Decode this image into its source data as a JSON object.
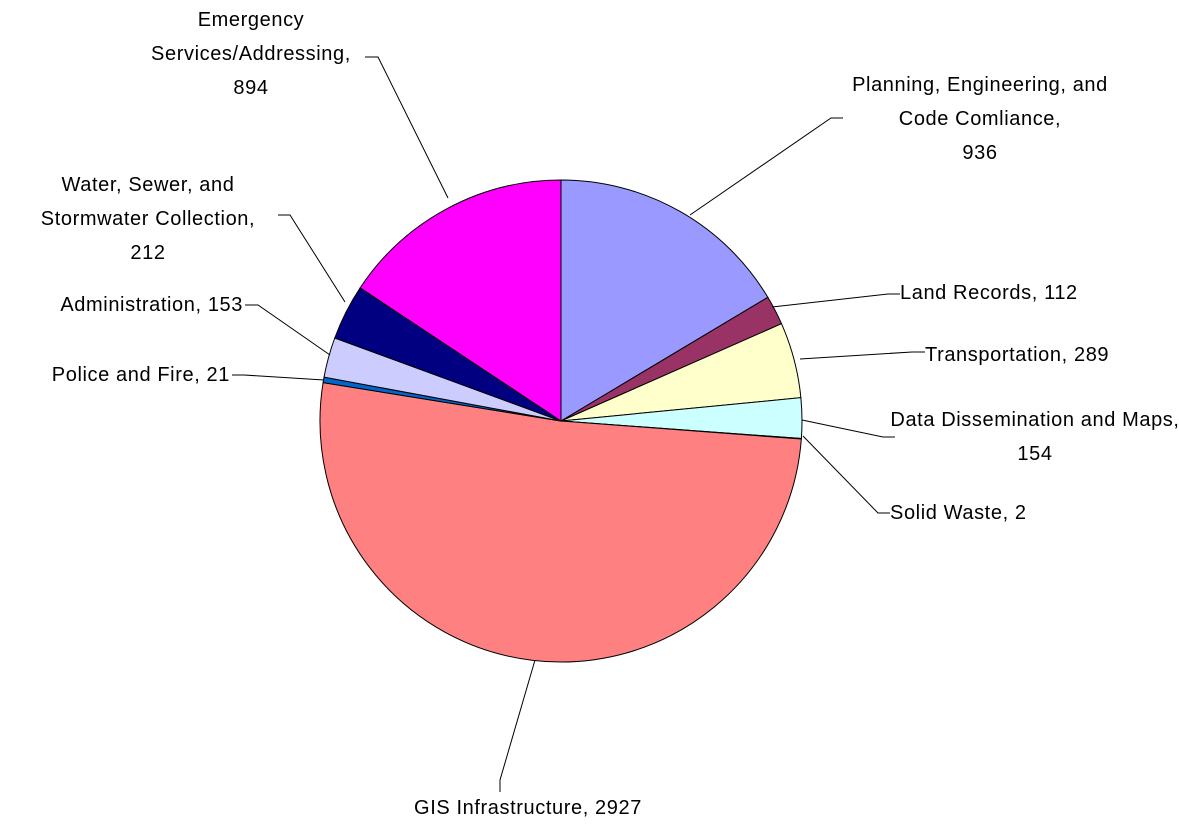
{
  "chart_data": {
    "type": "pie",
    "categories": [
      "Planning, Engineering, and Code Comliance",
      "Land Records",
      "Transportation",
      "Data Dissemination and Maps",
      "Solid Waste",
      "GIS Infrastructure",
      "Police and Fire",
      "Administration",
      "Water, Sewer, and Stormwater Collection",
      "Emergency Services/Addressing"
    ],
    "values": [
      936,
      112,
      289,
      154,
      2,
      2927,
      21,
      153,
      212,
      894
    ],
    "colors": [
      "#9999ff",
      "#993366",
      "#ffffcc",
      "#ccffff",
      "#660066",
      "#ff8080",
      "#0066cc",
      "#ccccff",
      "#000080",
      "#ff00ff"
    ]
  }
}
